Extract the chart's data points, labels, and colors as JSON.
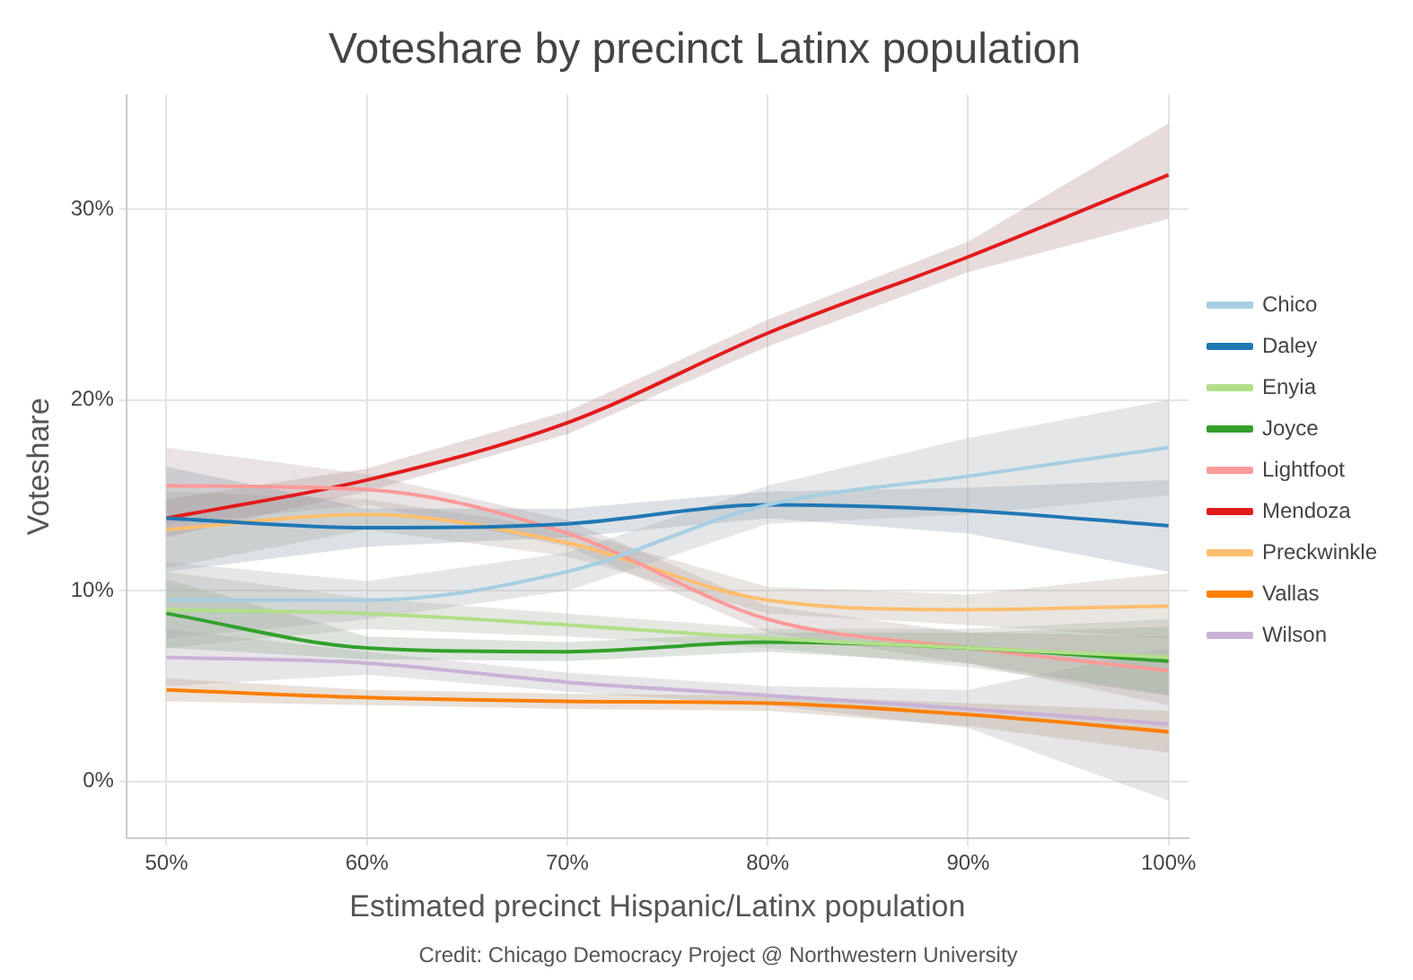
{
  "chart_data": {
    "type": "line",
    "title": "Voteshare by precinct Latinx population",
    "xlabel": "Estimated precinct Hispanic/Latinx population",
    "ylabel": "Voteshare",
    "annotations": [
      "Credit: Chicago Democracy Project @ Northwestern University"
    ],
    "x": [
      50,
      60,
      70,
      80,
      90,
      100
    ],
    "xlim": [
      48,
      101
    ],
    "xticks": [
      {
        "value": 50,
        "label": "50%"
      },
      {
        "value": 60,
        "label": "60%"
      },
      {
        "value": 70,
        "label": "70%"
      },
      {
        "value": 80,
        "label": "80%"
      },
      {
        "value": 90,
        "label": "90%"
      },
      {
        "value": 100,
        "label": "100%"
      }
    ],
    "ylim": [
      -3,
      36
    ],
    "yticks": [
      {
        "value": 0,
        "label": "0%"
      },
      {
        "value": 10,
        "label": "10%"
      },
      {
        "value": 20,
        "label": "20%"
      },
      {
        "value": 30,
        "label": "30%"
      }
    ],
    "grid": true,
    "legend": "right",
    "marker": "none",
    "line_style": "solid",
    "series": [
      {
        "name": "Chico",
        "color": "#a6cee3",
        "values": [
          9.5,
          9.5,
          11,
          14.5,
          16,
          17.5
        ],
        "lower": [
          7.5,
          8.5,
          10,
          13.5,
          14,
          15
        ],
        "upper": [
          11.5,
          10.5,
          12,
          15.5,
          18,
          20
        ]
      },
      {
        "name": "Daley",
        "color": "#1f78b4",
        "values": [
          13.8,
          13.3,
          13.5,
          14.5,
          14.2,
          13.4
        ],
        "lower": [
          11,
          12.3,
          12.8,
          13.8,
          13,
          11
        ],
        "upper": [
          16.5,
          14.3,
          14.3,
          15.2,
          15.4,
          15.8
        ]
      },
      {
        "name": "Enyia",
        "color": "#b2df8a",
        "values": [
          9,
          8.8,
          8.2,
          7.5,
          7,
          6.5
        ],
        "lower": [
          7,
          8,
          7.6,
          7,
          6,
          4.5
        ],
        "upper": [
          11,
          9.6,
          8.8,
          8,
          8,
          8.5
        ]
      },
      {
        "name": "Joyce",
        "color": "#33a02c",
        "values": [
          8.8,
          7,
          6.8,
          7.3,
          7,
          6.3
        ],
        "lower": [
          7,
          6.4,
          6.3,
          6.8,
          6.2,
          4.5
        ],
        "upper": [
          10.6,
          7.6,
          7.3,
          7.8,
          7.8,
          8.1
        ]
      },
      {
        "name": "Lightfoot",
        "color": "#fb9a99",
        "values": [
          15.5,
          15.3,
          13,
          8.5,
          7,
          5.8
        ],
        "lower": [
          13.5,
          14.5,
          12.3,
          7.8,
          6.2,
          4
        ],
        "upper": [
          17.5,
          16.1,
          13.7,
          9.2,
          7.8,
          7.6
        ]
      },
      {
        "name": "Mendoza",
        "color": "#e31a1c",
        "values": [
          13.8,
          15.8,
          18.8,
          23.5,
          27.5,
          31.8
        ],
        "lower": [
          12.8,
          15.2,
          18.2,
          22.8,
          26.7,
          29.5
        ],
        "upper": [
          14.8,
          16.4,
          19.4,
          24.2,
          28.3,
          34.5
        ]
      },
      {
        "name": "Preckwinkle",
        "color": "#fdbf6f",
        "values": [
          13.2,
          14,
          12.5,
          9.5,
          9,
          9.2
        ],
        "lower": [
          11.2,
          13.2,
          11.8,
          8.8,
          8.2,
          7.5
        ],
        "upper": [
          15.2,
          14.8,
          13.2,
          10.2,
          9.8,
          10.9
        ]
      },
      {
        "name": "Vallas",
        "color": "#ff7f00",
        "values": [
          4.8,
          4.4,
          4.2,
          4.1,
          3.5,
          2.6
        ],
        "lower": [
          4.2,
          4,
          3.8,
          3.7,
          2.9,
          1.5
        ],
        "upper": [
          5.4,
          4.8,
          4.6,
          4.5,
          4.1,
          3.7
        ]
      },
      {
        "name": "Wilson",
        "color": "#cab2d6",
        "values": [
          6.5,
          6.2,
          5.2,
          4.5,
          3.8,
          3
        ],
        "lower": [
          5,
          5.6,
          4.7,
          4,
          2.8,
          -1
        ],
        "upper": [
          8,
          6.8,
          5.7,
          5,
          4.8,
          7
        ]
      }
    ]
  }
}
